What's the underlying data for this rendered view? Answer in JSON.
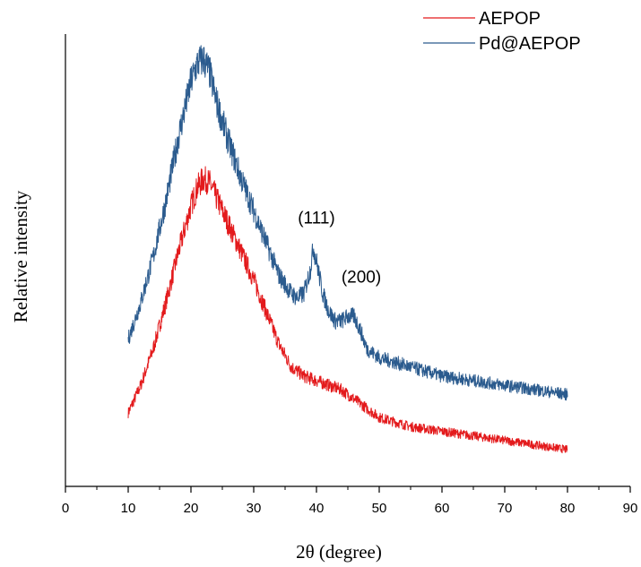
{
  "chart_data": {
    "type": "line",
    "xlabel": "2θ (degree)",
    "ylabel": "Relative intensity",
    "xlim": [
      0,
      90
    ],
    "ylim": [
      0,
      100
    ],
    "x_ticks": [
      "0",
      "10",
      "20",
      "30",
      "40",
      "50",
      "60",
      "70",
      "80",
      "90"
    ],
    "y_ticks_shown": false,
    "grid": false,
    "legend_position": "top-right",
    "series": [
      {
        "name": "AEPOP",
        "color": "#e31a1c",
        "x": [
          10,
          12,
          14,
          16,
          18,
          20,
          21,
          22,
          23,
          24,
          26,
          28,
          30,
          32,
          34,
          36,
          38,
          40,
          42,
          44,
          46,
          48,
          50,
          55,
          60,
          65,
          70,
          75,
          80
        ],
        "y": [
          16,
          22,
          30,
          40,
          51,
          61,
          65,
          67,
          66,
          63,
          57,
          51,
          45,
          38,
          31,
          26,
          24,
          23,
          22,
          21,
          19,
          17,
          15,
          13,
          12,
          11,
          10,
          9,
          8
        ]
      },
      {
        "name": "Pd@AEPOP",
        "color": "#2b5b8e",
        "x": [
          10,
          12,
          14,
          16,
          18,
          20,
          21,
          22,
          23,
          24,
          26,
          28,
          30,
          32,
          34,
          36,
          37,
          38,
          39,
          39.5,
          40,
          41,
          42,
          43,
          44,
          45,
          46,
          47,
          48,
          50,
          55,
          60,
          65,
          70,
          75,
          80
        ],
        "y": [
          32,
          40,
          50,
          62,
          76,
          88,
          92,
          93,
          90,
          84,
          75,
          67,
          60,
          53,
          46,
          42,
          41,
          42,
          47,
          52,
          49,
          42,
          38,
          36,
          36,
          37,
          37,
          34,
          30,
          28,
          26,
          24,
          23,
          22,
          21,
          20
        ]
      }
    ],
    "annotations": [
      {
        "text": "(111)",
        "x": 40,
        "y": 56
      },
      {
        "text": "(200)",
        "x": 46,
        "y": 42
      }
    ]
  }
}
